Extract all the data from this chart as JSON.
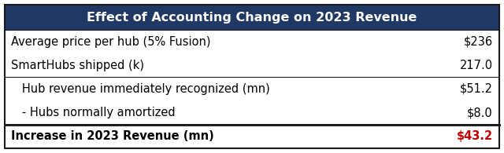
{
  "title": "Effect of Accounting Change on 2023 Revenue",
  "title_bg": "#1f3864",
  "title_color": "#ffffff",
  "rows": [
    {
      "label": "Average price per hub (5% Fusion)",
      "value": "$236",
      "indent": false,
      "bold": false,
      "thick_sep_below": false,
      "thin_sep_below": false
    },
    {
      "label": "SmartHubs shipped (k)",
      "value": "217.0",
      "indent": false,
      "bold": false,
      "thick_sep_below": false,
      "thin_sep_below": true
    },
    {
      "label": "   Hub revenue immediately recognized (mn)",
      "value": "$51.2",
      "indent": true,
      "bold": false,
      "thick_sep_below": false,
      "thin_sep_below": false
    },
    {
      "label": "   - Hubs normally amortized",
      "value": "$8.0",
      "indent": true,
      "bold": false,
      "thick_sep_below": true,
      "thin_sep_below": false
    },
    {
      "label": "Increase in 2023 Revenue (mn)",
      "value": "$43.2",
      "indent": false,
      "bold": true,
      "thick_sep_below": false,
      "thin_sep_below": false
    }
  ],
  "label_color": "#000000",
  "value_color": "#000000",
  "last_value_color": "#c00000",
  "border_color": "#1a1a1a",
  "bg_color": "#ffffff",
  "font_size": 10.5,
  "title_font_size": 11.5,
  "fig_width": 6.4,
  "fig_height": 1.95,
  "dpi": 100
}
